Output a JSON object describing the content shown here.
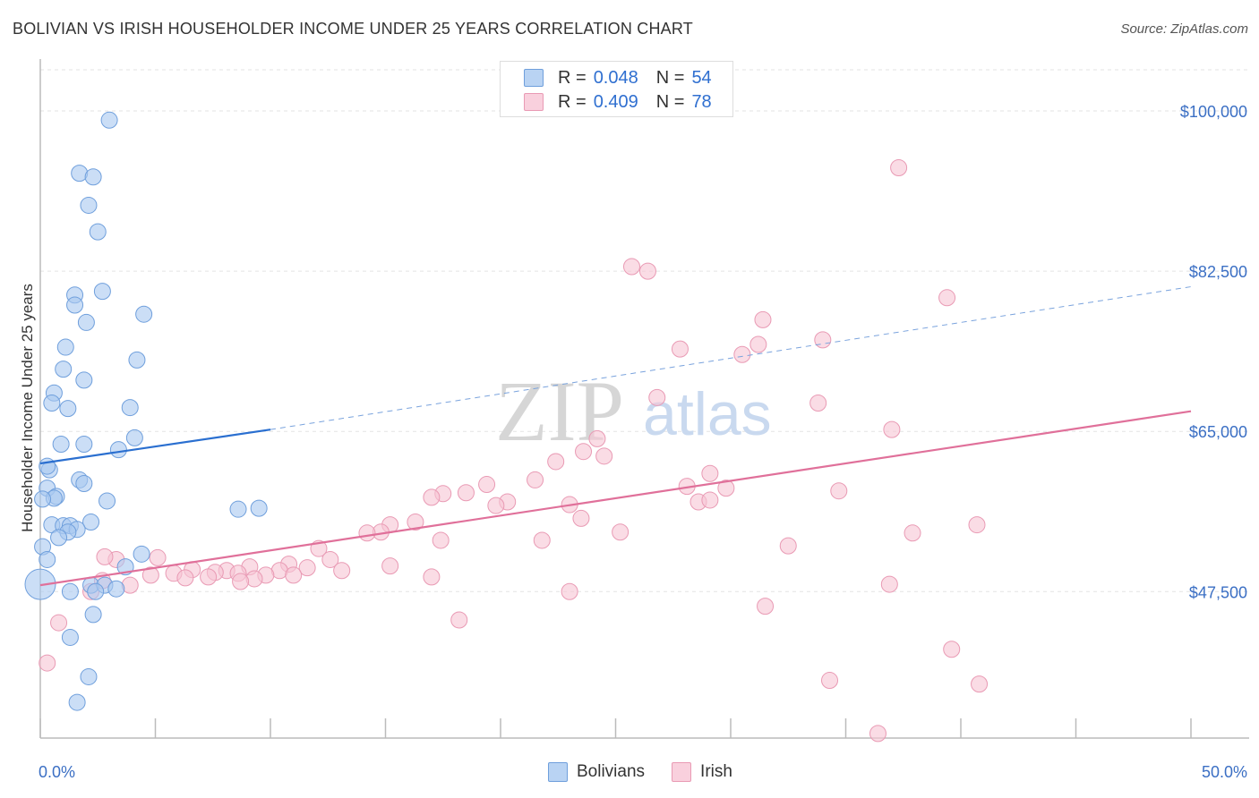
{
  "title": "BOLIVIAN VS IRISH HOUSEHOLDER INCOME UNDER 25 YEARS CORRELATION CHART",
  "source": "Source: ZipAtlas.com",
  "watermark": {
    "zip": "ZIP",
    "atlas": "atlas"
  },
  "legend": {
    "rows": [
      {
        "r_label": "R =",
        "r_value": "0.048",
        "n_label": "N =",
        "n_value": "54"
      },
      {
        "r_label": "R =",
        "r_value": "0.409",
        "n_label": "N =",
        "n_value": "78"
      }
    ]
  },
  "bottom_legend": [
    "Bolivians",
    "Irish"
  ],
  "colors": {
    "blue_fill": "#a9c8f0",
    "blue_stroke": "#6f9fdc",
    "blue_line": "#2a6fd0",
    "pink_fill": "#f6c4d4",
    "pink_stroke": "#e99ab4",
    "pink_line": "#e0709a",
    "tick_text": "#3b6fc4"
  },
  "chart_data": {
    "type": "scatter",
    "title": "BOLIVIAN VS IRISH HOUSEHOLDER INCOME UNDER 25 YEARS CORRELATION CHART",
    "xlabel": "",
    "ylabel": "Householder Income Under 25 years",
    "xlim": [
      0,
      50
    ],
    "ylim": [
      31500,
      104500
    ],
    "x_tick_labels": [
      "0.0%",
      "50.0%"
    ],
    "y_ticks": [
      {
        "value": 100000,
        "label": "$100,000"
      },
      {
        "value": 82500,
        "label": "$82,500"
      },
      {
        "value": 65000,
        "label": "$65,000"
      },
      {
        "value": 47500,
        "label": "$47,500"
      }
    ],
    "series": [
      {
        "name": "Bolivians",
        "R": 0.048,
        "N": 54,
        "trend": {
          "solid": [
            [
              0,
              61500
            ],
            [
              10,
              65200
            ]
          ],
          "dashed": [
            [
              10,
              65200
            ],
            [
              50,
              80800
            ]
          ]
        },
        "points": [
          [
            3.0,
            99000
          ],
          [
            1.7,
            93200
          ],
          [
            2.3,
            92800
          ],
          [
            2.1,
            89700
          ],
          [
            2.5,
            86800
          ],
          [
            1.5,
            79900
          ],
          [
            2.7,
            80300
          ],
          [
            1.5,
            78800
          ],
          [
            4.5,
            77800
          ],
          [
            2.0,
            76900
          ],
          [
            1.1,
            74200
          ],
          [
            4.2,
            72800
          ],
          [
            1.0,
            71800
          ],
          [
            1.9,
            70600
          ],
          [
            0.6,
            69200
          ],
          [
            0.5,
            68100
          ],
          [
            1.2,
            67500
          ],
          [
            3.9,
            67600
          ],
          [
            4.1,
            64300
          ],
          [
            1.9,
            63600
          ],
          [
            0.9,
            63600
          ],
          [
            3.4,
            63000
          ],
          [
            0.4,
            60800
          ],
          [
            1.7,
            59700
          ],
          [
            1.9,
            59300
          ],
          [
            0.3,
            58800
          ],
          [
            0.7,
            57900
          ],
          [
            0.6,
            57700
          ],
          [
            0.1,
            57600
          ],
          [
            2.9,
            57400
          ],
          [
            8.6,
            56500
          ],
          [
            9.5,
            56600
          ],
          [
            0.5,
            54800
          ],
          [
            2.2,
            55100
          ],
          [
            1.0,
            54700
          ],
          [
            1.3,
            54700
          ],
          [
            1.6,
            54300
          ],
          [
            1.2,
            54000
          ],
          [
            0.8,
            53400
          ],
          [
            0.1,
            52400
          ],
          [
            4.4,
            51600
          ],
          [
            0.3,
            51000
          ],
          [
            3.7,
            50200
          ],
          [
            0,
            48300
          ],
          [
            2.2,
            48200
          ],
          [
            2.8,
            48200
          ],
          [
            3.3,
            47800
          ],
          [
            2.4,
            47500
          ],
          [
            1.3,
            47500
          ],
          [
            2.3,
            45000
          ],
          [
            1.3,
            42500
          ],
          [
            2.1,
            38200
          ],
          [
            1.6,
            35400
          ],
          [
            0.3,
            61200
          ]
        ]
      },
      {
        "name": "Irish",
        "R": 0.409,
        "N": 78,
        "trend": {
          "solid": [
            [
              0,
              48200
            ],
            [
              50,
              67200
            ]
          ]
        },
        "points": [
          [
            37.3,
            93800
          ],
          [
            25.7,
            83000
          ],
          [
            26.4,
            82500
          ],
          [
            39.4,
            79600
          ],
          [
            31.4,
            77200
          ],
          [
            27.8,
            74000
          ],
          [
            31.2,
            74500
          ],
          [
            30.5,
            73400
          ],
          [
            34.0,
            75000
          ],
          [
            26.8,
            68700
          ],
          [
            33.8,
            68100
          ],
          [
            37.0,
            65200
          ],
          [
            24.2,
            64200
          ],
          [
            23.6,
            62800
          ],
          [
            24.5,
            62300
          ],
          [
            22.4,
            61700
          ],
          [
            21.5,
            59700
          ],
          [
            29.1,
            60400
          ],
          [
            19.4,
            59200
          ],
          [
            28.1,
            59000
          ],
          [
            29.8,
            58800
          ],
          [
            18.5,
            58300
          ],
          [
            34.7,
            58500
          ],
          [
            17.5,
            58200
          ],
          [
            17.0,
            57800
          ],
          [
            20.3,
            57300
          ],
          [
            23.0,
            57000
          ],
          [
            28.6,
            57300
          ],
          [
            19.8,
            56900
          ],
          [
            29.1,
            57500
          ],
          [
            23.5,
            55500
          ],
          [
            16.3,
            55100
          ],
          [
            15.2,
            54800
          ],
          [
            14.8,
            54000
          ],
          [
            14.2,
            53900
          ],
          [
            25.2,
            54000
          ],
          [
            37.9,
            53900
          ],
          [
            40.7,
            54800
          ],
          [
            17.4,
            53100
          ],
          [
            21.8,
            53100
          ],
          [
            32.5,
            52500
          ],
          [
            12.1,
            52200
          ],
          [
            12.6,
            51000
          ],
          [
            3.3,
            51000
          ],
          [
            5.1,
            51200
          ],
          [
            2.8,
            51300
          ],
          [
            10.8,
            50500
          ],
          [
            15.2,
            50300
          ],
          [
            11.6,
            50100
          ],
          [
            9.1,
            50200
          ],
          [
            10.4,
            49800
          ],
          [
            8.1,
            49800
          ],
          [
            6.6,
            49900
          ],
          [
            13.1,
            49800
          ],
          [
            7.6,
            49600
          ],
          [
            5.8,
            49500
          ],
          [
            8.6,
            49500
          ],
          [
            9.8,
            49300
          ],
          [
            11.0,
            49300
          ],
          [
            4.8,
            49300
          ],
          [
            17.0,
            49100
          ],
          [
            7.3,
            49100
          ],
          [
            6.3,
            49000
          ],
          [
            9.3,
            48900
          ],
          [
            2.7,
            48700
          ],
          [
            8.7,
            48600
          ],
          [
            3.9,
            48200
          ],
          [
            2.2,
            47500
          ],
          [
            23.0,
            47500
          ],
          [
            36.9,
            48300
          ],
          [
            31.5,
            45900
          ],
          [
            18.2,
            44400
          ],
          [
            0.8,
            44100
          ],
          [
            39.6,
            41200
          ],
          [
            0.3,
            39700
          ],
          [
            34.3,
            37800
          ],
          [
            40.8,
            37400
          ],
          [
            36.4,
            32000
          ]
        ]
      }
    ]
  }
}
